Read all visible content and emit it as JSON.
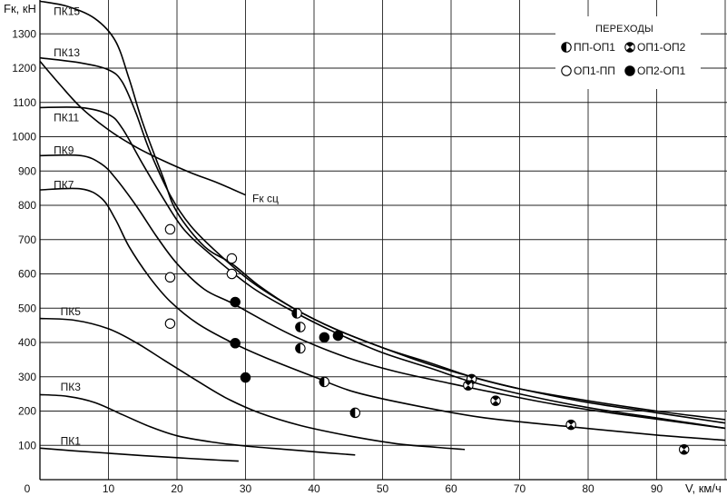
{
  "chart_data": {
    "type": "line",
    "title": "",
    "xlabel": "V, км/ч",
    "ylabel": "Fк, кН",
    "xlim": [
      0,
      100
    ],
    "ylim": [
      0,
      1400
    ],
    "grid": true,
    "x_ticks": [
      0,
      10,
      20,
      30,
      40,
      50,
      60,
      70,
      80,
      90
    ],
    "y_ticks": [
      100,
      200,
      300,
      400,
      500,
      600,
      700,
      800,
      900,
      1000,
      1100,
      1200,
      1300
    ],
    "legend": {
      "title": "ПЕРЕХОДЫ",
      "placement": "top-right",
      "items": [
        {
          "key": "pp_op1",
          "label": "ПП-ОП1",
          "marker": "half"
        },
        {
          "key": "op1_op2",
          "label": "ОП1-ОП2",
          "marker": "cross"
        },
        {
          "key": "op1_pp",
          "label": "ОП1-ПП",
          "marker": "open"
        },
        {
          "key": "op2_op1",
          "label": "ОП2-ОП1",
          "marker": "filled"
        }
      ]
    },
    "series": [
      {
        "name": "ПК15",
        "points": [
          [
            0,
            1395
          ],
          [
            4,
            1380
          ],
          [
            8,
            1345
          ],
          [
            11,
            1280
          ],
          [
            13,
            1170
          ],
          [
            15,
            1040
          ],
          [
            18,
            880
          ],
          [
            20,
            780
          ],
          [
            24,
            680
          ],
          [
            28,
            630
          ],
          [
            32,
            565
          ],
          [
            37,
            500
          ],
          [
            43,
            440
          ],
          [
            50,
            385
          ],
          [
            57,
            335
          ],
          [
            63,
            300
          ],
          [
            70,
            265
          ],
          [
            80,
            230
          ],
          [
            90,
            200
          ],
          [
            100,
            175
          ]
        ]
      },
      {
        "name": "ПК13",
        "points": [
          [
            0,
            1230
          ],
          [
            6,
            1215
          ],
          [
            10,
            1195
          ],
          [
            12,
            1160
          ],
          [
            14,
            1070
          ],
          [
            16,
            960
          ],
          [
            19,
            830
          ],
          [
            22,
            740
          ],
          [
            26,
            660
          ],
          [
            31,
            575
          ],
          [
            37,
            500
          ],
          [
            43,
            440
          ],
          [
            50,
            385
          ],
          [
            57,
            340
          ],
          [
            63,
            300
          ],
          [
            70,
            265
          ],
          [
            80,
            225
          ],
          [
            90,
            195
          ],
          [
            100,
            165
          ]
        ]
      },
      {
        "name": "ПК11",
        "points": [
          [
            0,
            1085
          ],
          [
            6,
            1085
          ],
          [
            10,
            1065
          ],
          [
            12,
            1025
          ],
          [
            15,
            920
          ],
          [
            18,
            820
          ],
          [
            21,
            730
          ],
          [
            25,
            655
          ],
          [
            31,
            560
          ],
          [
            37,
            490
          ],
          [
            43,
            430
          ],
          [
            50,
            370
          ],
          [
            57,
            325
          ],
          [
            63,
            285
          ],
          [
            70,
            250
          ],
          [
            80,
            210
          ],
          [
            90,
            180
          ],
          [
            100,
            150
          ]
        ]
      },
      {
        "name": "ПК9",
        "points": [
          [
            0,
            945
          ],
          [
            6,
            945
          ],
          [
            9,
            920
          ],
          [
            11,
            880
          ],
          [
            14,
            800
          ],
          [
            17,
            710
          ],
          [
            20,
            630
          ],
          [
            24,
            555
          ],
          [
            28,
            515
          ],
          [
            33,
            460
          ],
          [
            38,
            410
          ],
          [
            45,
            355
          ],
          [
            52,
            315
          ],
          [
            60,
            280
          ],
          [
            66,
            255
          ],
          [
            75,
            220
          ],
          [
            85,
            190
          ],
          [
            100,
            150
          ]
        ]
      },
      {
        "name": "ПК7",
        "points": [
          [
            0,
            845
          ],
          [
            6,
            848
          ],
          [
            9,
            820
          ],
          [
            11,
            760
          ],
          [
            13,
            680
          ],
          [
            16,
            590
          ],
          [
            19,
            520
          ],
          [
            23,
            455
          ],
          [
            28,
            400
          ],
          [
            33,
            355
          ],
          [
            40,
            300
          ],
          [
            46,
            255
          ],
          [
            55,
            215
          ],
          [
            65,
            180
          ],
          [
            77,
            155
          ],
          [
            90,
            130
          ],
          [
            100,
            115
          ]
        ]
      },
      {
        "name": "ПК5",
        "points": [
          [
            0,
            470
          ],
          [
            5,
            465
          ],
          [
            10,
            440
          ],
          [
            14,
            400
          ],
          [
            18,
            350
          ],
          [
            22,
            300
          ],
          [
            27,
            240
          ],
          [
            32,
            195
          ],
          [
            38,
            158
          ],
          [
            45,
            128
          ],
          [
            52,
            105
          ],
          [
            58,
            94
          ],
          [
            62,
            88
          ]
        ]
      },
      {
        "name": "ПК3",
        "points": [
          [
            0,
            248
          ],
          [
            4,
            243
          ],
          [
            8,
            225
          ],
          [
            12,
            190
          ],
          [
            16,
            155
          ],
          [
            20,
            128
          ],
          [
            25,
            110
          ],
          [
            30,
            98
          ],
          [
            36,
            88
          ],
          [
            42,
            78
          ],
          [
            46,
            72
          ]
        ]
      },
      {
        "name": "ПК1",
        "points": [
          [
            0,
            92
          ],
          [
            5,
            84
          ],
          [
            10,
            77
          ],
          [
            15,
            70
          ],
          [
            20,
            64
          ],
          [
            25,
            58
          ],
          [
            29,
            54
          ]
        ]
      },
      {
        "name": "Fк сц",
        "points": [
          [
            0,
            1220
          ],
          [
            3,
            1150
          ],
          [
            6,
            1085
          ],
          [
            10,
            1020
          ],
          [
            14,
            970
          ],
          [
            18,
            930
          ],
          [
            22,
            895
          ],
          [
            26,
            865
          ],
          [
            30,
            830
          ]
        ]
      }
    ],
    "transition_points": [
      {
        "type": "op1_pp",
        "x": 19,
        "y": 730
      },
      {
        "type": "op1_pp",
        "x": 19,
        "y": 590
      },
      {
        "type": "op1_pp",
        "x": 19,
        "y": 455
      },
      {
        "type": "op1_pp",
        "x": 28,
        "y": 645
      },
      {
        "type": "op1_pp",
        "x": 28,
        "y": 600
      },
      {
        "type": "op2_op1",
        "x": 28.5,
        "y": 518
      },
      {
        "type": "op2_op1",
        "x": 28.5,
        "y": 398
      },
      {
        "type": "op2_op1",
        "x": 30,
        "y": 298
      },
      {
        "type": "op2_op1",
        "x": 41.5,
        "y": 415
      },
      {
        "type": "op2_op1",
        "x": 43.5,
        "y": 420
      },
      {
        "type": "pp_op1",
        "x": 37.5,
        "y": 485
      },
      {
        "type": "pp_op1",
        "x": 38,
        "y": 445
      },
      {
        "type": "pp_op1",
        "x": 38,
        "y": 383
      },
      {
        "type": "pp_op1",
        "x": 41.5,
        "y": 285
      },
      {
        "type": "pp_op1",
        "x": 46,
        "y": 195
      },
      {
        "type": "op1_op2",
        "x": 63,
        "y": 293
      },
      {
        "type": "op1_op2",
        "x": 62.5,
        "y": 275
      },
      {
        "type": "op1_op2",
        "x": 66.5,
        "y": 230
      },
      {
        "type": "op1_op2",
        "x": 77.5,
        "y": 160
      },
      {
        "type": "op1_op2",
        "x": 94,
        "y": 88
      }
    ],
    "curve_labels": [
      {
        "text": "ПК15",
        "x": 2,
        "y": 1365
      },
      {
        "text": "ПК13",
        "x": 2,
        "y": 1245
      },
      {
        "text": "ПК11",
        "x": 2,
        "y": 1055
      },
      {
        "text": "ПК9",
        "x": 2,
        "y": 960
      },
      {
        "text": "ПК7",
        "x": 2,
        "y": 860
      },
      {
        "text": "ПК5",
        "x": 3,
        "y": 490
      },
      {
        "text": "ПК3",
        "x": 3,
        "y": 270
      },
      {
        "text": "ПК1",
        "x": 3,
        "y": 112
      },
      {
        "text": "Fк сц",
        "x": 31,
        "y": 820
      }
    ]
  }
}
